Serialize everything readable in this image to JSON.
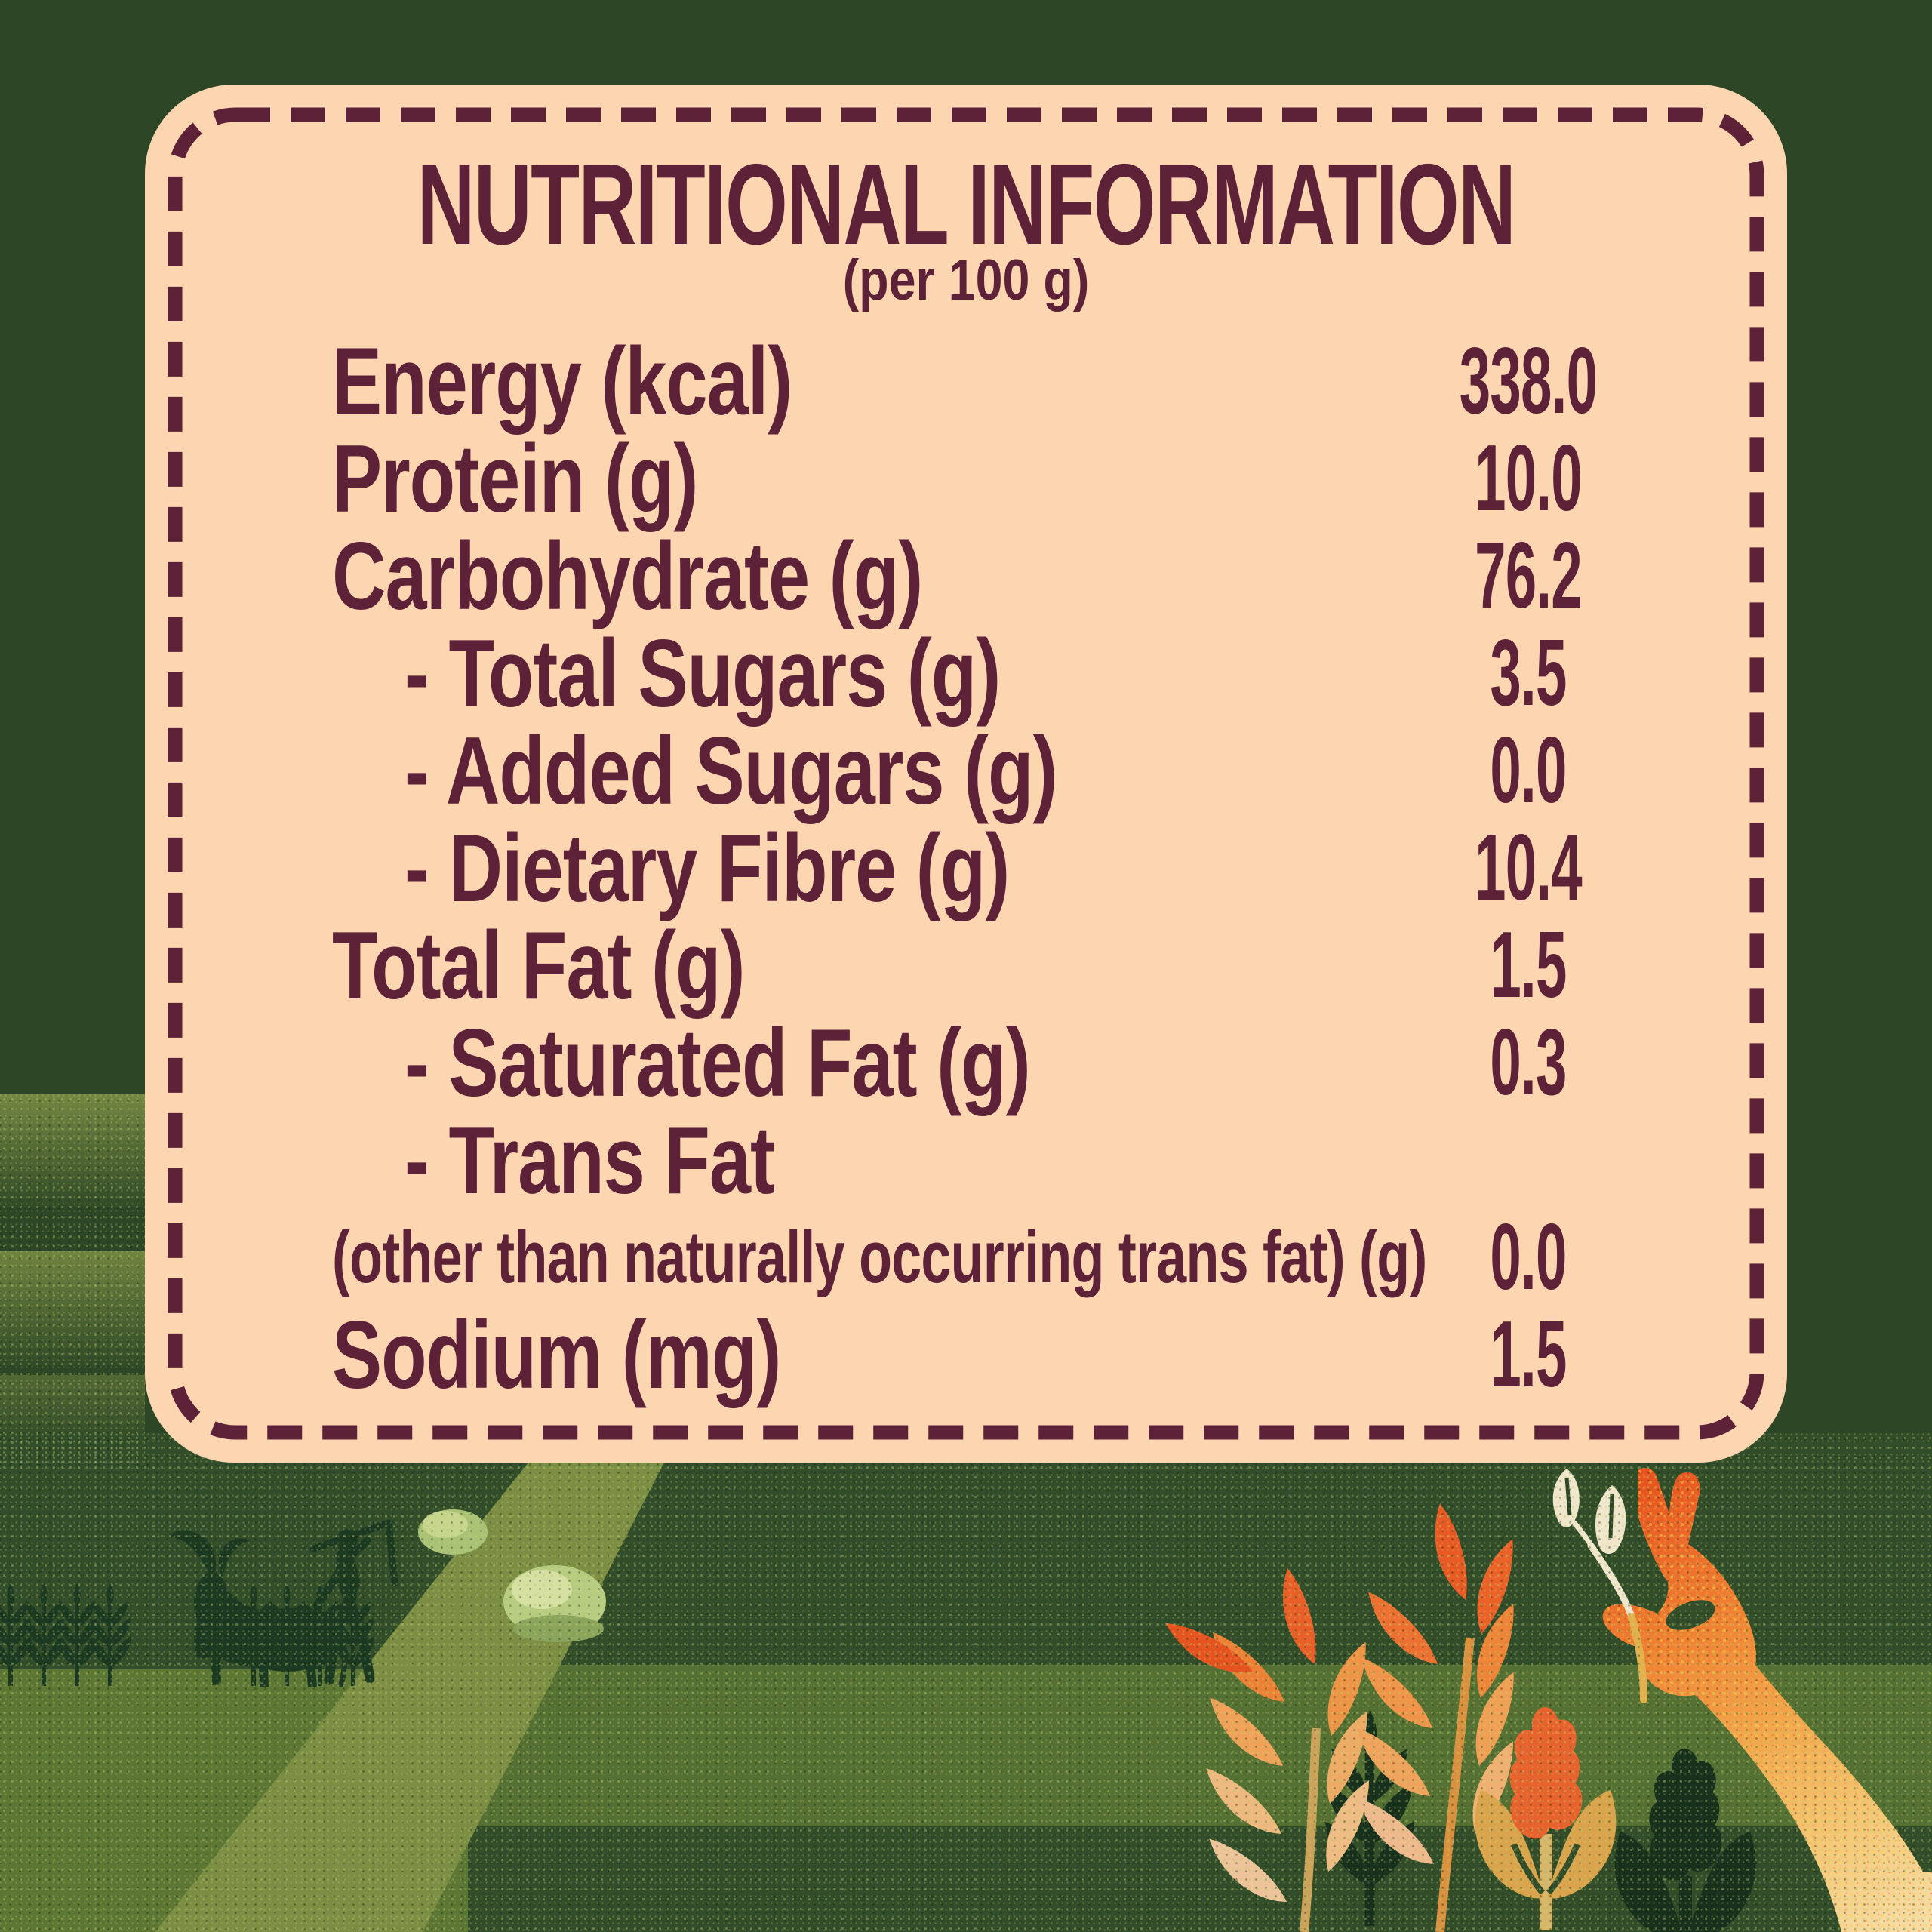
{
  "header": {
    "title": "NUTRITIONAL INFORMATION",
    "subtitle": "(per 100 g)"
  },
  "table": {
    "rows": [
      {
        "label": "Energy (kcal)",
        "value": "338.0",
        "indent": false,
        "small": false
      },
      {
        "label": "Protein (g)",
        "value": "10.0",
        "indent": false,
        "small": false
      },
      {
        "label": "Carbohydrate (g)",
        "value": "76.2",
        "indent": false,
        "small": false
      },
      {
        "label": "- Total Sugars (g)",
        "value": "3.5",
        "indent": true,
        "small": false
      },
      {
        "label": "- Added Sugars (g)",
        "value": "0.0",
        "indent": true,
        "small": false
      },
      {
        "label": "- Dietary Fibre (g)",
        "value": "10.4",
        "indent": true,
        "small": false
      },
      {
        "label": "Total Fat (g)",
        "value": "1.5",
        "indent": false,
        "small": false
      },
      {
        "label": "- Saturated Fat (g)",
        "value": "0.3",
        "indent": true,
        "small": false
      },
      {
        "label": "- Trans Fat",
        "value": "",
        "indent": true,
        "small": false
      },
      {
        "label": "(other than naturally occurring trans fat) (g)",
        "value": "0.0",
        "indent": false,
        "small": true
      },
      {
        "label": "Sodium (mg)",
        "value": "1.5",
        "indent": false,
        "small": false
      }
    ]
  },
  "colors": {
    "background_green": "#2d4726",
    "panel_peach": "#fcd5b1",
    "text_maroon": "#5d2138",
    "field_dark": "#314d29",
    "field_olive": "#5c7634",
    "path_light": "#7b8e43",
    "silhouette_green": "#1c3a22",
    "wheat_orange": "#ec7030",
    "wheat_gold": "#eeb05e",
    "hand_orange": "#ef8132",
    "sprig_cream": "#f0e6cc"
  },
  "illustration": {
    "left_scene": "farmer-ploughing-with-ox-silhouette",
    "wheat_rows": "dark-wheat-stalks-row",
    "bushes": "field-bushes",
    "right_scene": "hand-picking-wheat-sprig",
    "wheat_stalks": "orange-wheat-stalks",
    "emblems": "wheat-in-hands-emblem"
  }
}
